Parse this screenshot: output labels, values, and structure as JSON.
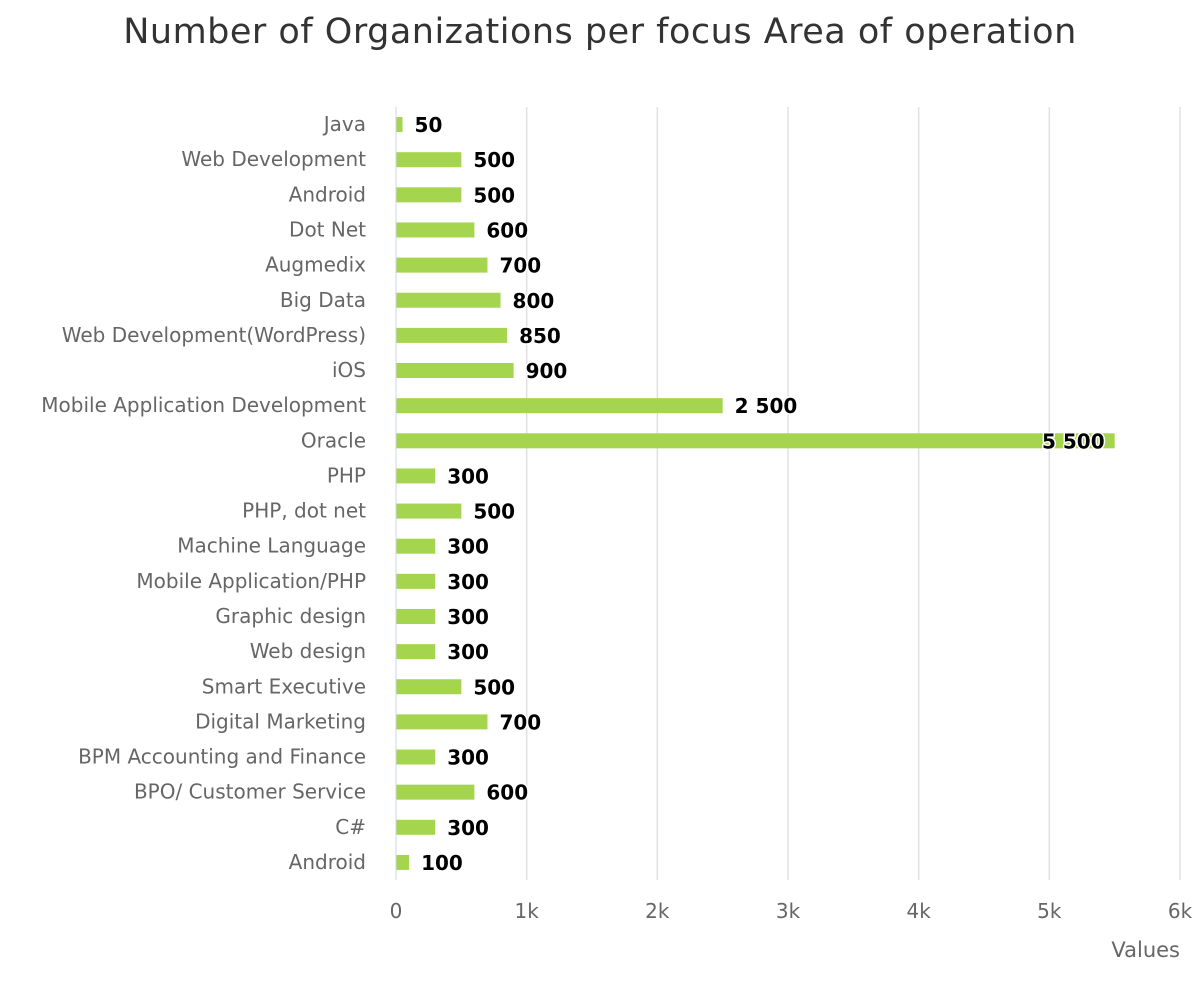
{
  "chart_data": {
    "type": "bar",
    "orientation": "horizontal",
    "title": "Number of Organizations per focus Area of operation",
    "xlabel": "Values",
    "ylabel": "",
    "xlim": [
      0,
      6000
    ],
    "grid": true,
    "legend": "none",
    "bar_color": "#a5d44f",
    "grid_color": "#e0e0e0",
    "categories": [
      "Java",
      "Web Development",
      "Android",
      "Dot Net",
      "Augmedix",
      "Big Data",
      "Web Development(WordPress)",
      "iOS",
      "Mobile Application Development",
      "Oracle",
      "PHP",
      "PHP, dot net",
      "Machine Language",
      "Mobile Application/PHP",
      "Graphic design",
      "Web design",
      "Smart Executive",
      "Digital Marketing",
      "BPM Accounting and Finance",
      "BPO/ Customer Service",
      "C#",
      "Android"
    ],
    "values": [
      50,
      500,
      500,
      600,
      700,
      800,
      850,
      900,
      2500,
      5500,
      300,
      500,
      300,
      300,
      300,
      300,
      500,
      700,
      300,
      600,
      300,
      100
    ],
    "data_labels": [
      "50",
      "500",
      "500",
      "600",
      "700",
      "800",
      "850",
      "900",
      "2 500",
      "5 500",
      "300",
      "500",
      "300",
      "300",
      "300",
      "300",
      "500",
      "700",
      "300",
      "600",
      "300",
      "100"
    ],
    "x_ticks": [
      0,
      1000,
      2000,
      3000,
      4000,
      5000,
      6000
    ],
    "x_tick_labels": [
      "0",
      "1k",
      "2k",
      "3k",
      "4k",
      "5k",
      "6k"
    ]
  }
}
